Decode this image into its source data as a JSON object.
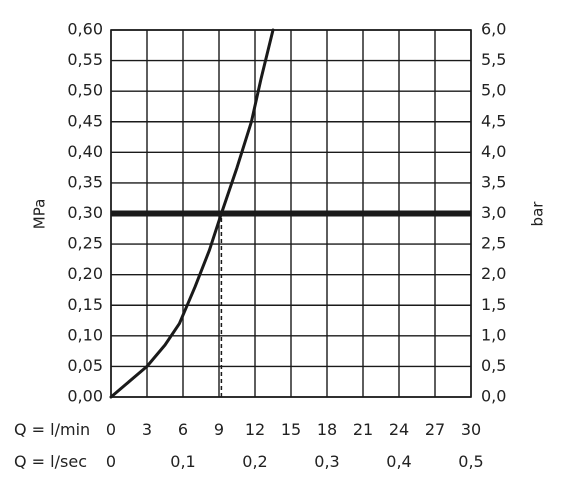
{
  "chart_data": {
    "type": "line",
    "title": "",
    "ylabel_left": "MPa",
    "ylabel_right": "bar",
    "x_rows": [
      {
        "label": "Q = l/min",
        "ticks": [
          "0",
          "3",
          "6",
          "9",
          "12",
          "15",
          "18",
          "21",
          "24",
          "27",
          "30"
        ]
      },
      {
        "label": "Q = l/sec",
        "ticks": [
          "0",
          "0,1",
          "0,2",
          "0,3",
          "0,4",
          "0,5"
        ]
      }
    ],
    "y_left_ticks": [
      "0,00",
      "0,05",
      "0,10",
      "0,15",
      "0,20",
      "0,25",
      "0,30",
      "0,35",
      "0,40",
      "0,45",
      "0,50",
      "0,55",
      "0,60"
    ],
    "y_right_ticks": [
      "0,0",
      "0,5",
      "1,0",
      "1,5",
      "2,0",
      "2,5",
      "3,0",
      "3,5",
      "4,0",
      "4,5",
      "5,0",
      "5,5",
      "6,0"
    ],
    "xlim": [
      0,
      30
    ],
    "ylim": [
      0,
      0.6
    ],
    "x_unit": "l/min",
    "y_unit": "MPa",
    "grid": true,
    "series": [
      {
        "points": [
          [
            0,
            0
          ],
          [
            1.5,
            0.025
          ],
          [
            3,
            0.05
          ],
          [
            4.5,
            0.085
          ],
          [
            5.7,
            0.12
          ],
          [
            7,
            0.18
          ],
          [
            8.2,
            0.24
          ],
          [
            9.2,
            0.3
          ],
          [
            10.5,
            0.375
          ],
          [
            11.7,
            0.45
          ],
          [
            12.5,
            0.52
          ],
          [
            13.5,
            0.6
          ]
        ],
        "color": "#1a1a1a"
      }
    ],
    "reference_line": {
      "y": 0.3,
      "color": "#1a1a1a",
      "style": "bold horizontal"
    },
    "drop_line": {
      "x": 9.2,
      "y_from": 0,
      "y_to": 0.3,
      "style": "dashed"
    }
  }
}
